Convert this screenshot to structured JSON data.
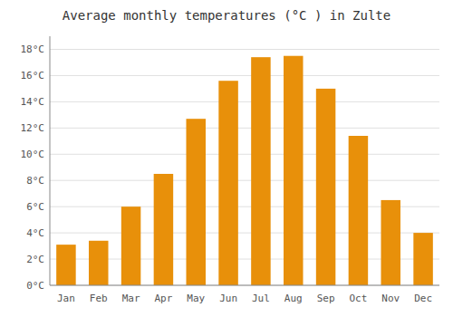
{
  "chart_data": {
    "type": "bar",
    "title": "Average monthly temperatures (°C ) in Zulte",
    "categories": [
      "Jan",
      "Feb",
      "Mar",
      "Apr",
      "May",
      "Jun",
      "Jul",
      "Aug",
      "Sep",
      "Oct",
      "Nov",
      "Dec"
    ],
    "values": [
      3.1,
      3.4,
      6.0,
      8.5,
      12.7,
      15.6,
      17.4,
      17.5,
      15.0,
      11.4,
      6.5,
      4.0
    ],
    "color": "#E8900A",
    "ylim": [
      0,
      19
    ],
    "yticks": [
      {
        "value": 0,
        "label": "0°C"
      },
      {
        "value": 2,
        "label": "2°C"
      },
      {
        "value": 4,
        "label": "4°C"
      },
      {
        "value": 6,
        "label": "6°C"
      },
      {
        "value": 8,
        "label": "8°C"
      },
      {
        "value": 10,
        "label": "10°C"
      },
      {
        "value": 12,
        "label": "12°C"
      },
      {
        "value": 14,
        "label": "14°C"
      },
      {
        "value": 16,
        "label": "16°C"
      },
      {
        "value": 18,
        "label": "18°C"
      }
    ],
    "grid": true
  }
}
